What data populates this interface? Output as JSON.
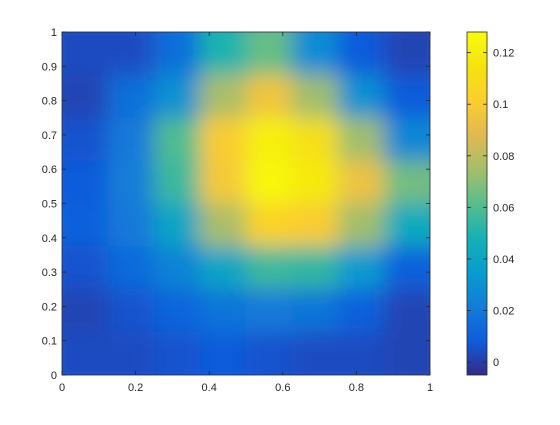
{
  "chart_data": {
    "type": "heatmap",
    "title": "",
    "xlabel": "",
    "ylabel": "",
    "xlim": [
      0,
      1
    ],
    "ylim": [
      0,
      1
    ],
    "grid": false,
    "rows_order": "top-to-bottom",
    "x_ticks": [
      "0",
      "0.2",
      "0.4",
      "0.6",
      "0.8",
      "1"
    ],
    "x_tick_values": [
      0,
      0.2,
      0.4,
      0.6,
      0.8,
      1
    ],
    "y_ticks": [
      "0",
      "0.1",
      "0.2",
      "0.3",
      "0.4",
      "0.5",
      "0.6",
      "0.7",
      "0.8",
      "0.9",
      "1"
    ],
    "y_tick_values": [
      0,
      0.1,
      0.2,
      0.3,
      0.4,
      0.5,
      0.6,
      0.7,
      0.8,
      0.9,
      1
    ],
    "colorbar": {
      "colormap": "parula",
      "range": [
        -0.005,
        0.128
      ],
      "ticks": [
        "0",
        "0.02",
        "0.04",
        "0.06",
        "0.08",
        "0.1",
        "0.12"
      ],
      "tick_values": [
        0,
        0.02,
        0.04,
        0.06,
        0.08,
        0.1,
        0.12
      ]
    },
    "values": [
      [
        0.004,
        0.004,
        0.016,
        0.05,
        0.064,
        0.028,
        0.008,
        0.002
      ],
      [
        0.002,
        0.016,
        0.03,
        0.076,
        0.096,
        0.074,
        0.03,
        0.008
      ],
      [
        0.006,
        0.02,
        0.06,
        0.1,
        0.122,
        0.112,
        0.074,
        0.026
      ],
      [
        0.008,
        0.022,
        0.056,
        0.098,
        0.126,
        0.118,
        0.094,
        0.066
      ],
      [
        0.01,
        0.02,
        0.04,
        0.076,
        0.104,
        0.1,
        0.074,
        0.044
      ],
      [
        0.006,
        0.014,
        0.024,
        0.04,
        0.056,
        0.054,
        0.034,
        0.01
      ],
      [
        0.002,
        0.006,
        0.012,
        0.018,
        0.02,
        0.018,
        0.01,
        0.002
      ],
      [
        0.004,
        0.004,
        0.006,
        0.008,
        0.006,
        0.004,
        0.004,
        0.002
      ]
    ]
  }
}
